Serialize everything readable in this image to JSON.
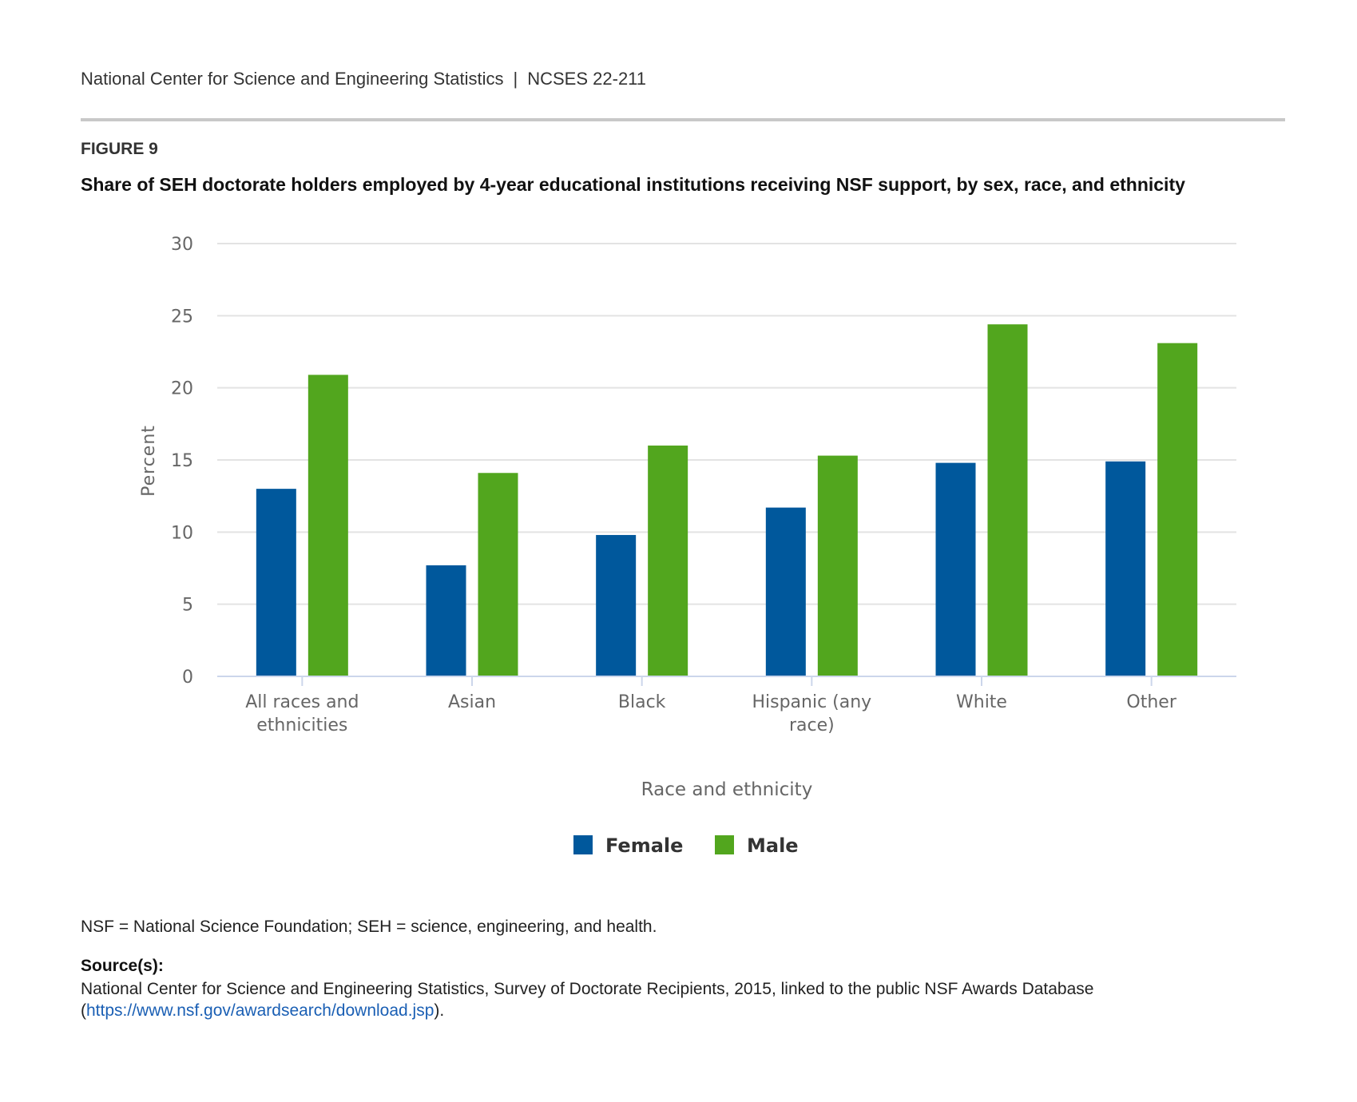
{
  "header": {
    "org": "National Center for Science and Engineering Statistics",
    "separator": "|",
    "report_id": "NCSES 22-211"
  },
  "figure": {
    "label": "FIGURE 9",
    "title": "Share of SEH doctorate holders employed by 4-year educational institutions receiving NSF support, by sex, race, and ethnicity"
  },
  "colors": {
    "female": "#00589c",
    "male": "#52a61e",
    "grid": "#e3e3e3",
    "axis": "#ccd6eb"
  },
  "chart_data": {
    "type": "bar",
    "title": "Share of SEH doctorate holders employed by 4-year educational institutions receiving NSF support, by sex, race, and ethnicity",
    "xlabel": "Race and ethnicity",
    "ylabel": "Percent",
    "ylim": [
      0,
      30
    ],
    "yticks": [
      0,
      5,
      10,
      15,
      20,
      25,
      30
    ],
    "grid": true,
    "legend_position": "bottom-center",
    "categories": [
      [
        "All races and",
        "ethnicities"
      ],
      [
        "Asian"
      ],
      [
        "Black"
      ],
      [
        "Hispanic (any",
        "race)"
      ],
      [
        "White"
      ],
      [
        "Other"
      ]
    ],
    "series": [
      {
        "name": "Female",
        "values": [
          13.0,
          7.7,
          9.8,
          11.7,
          14.8,
          14.9
        ]
      },
      {
        "name": "Male",
        "values": [
          20.9,
          14.1,
          16.0,
          15.3,
          24.4,
          23.1
        ]
      }
    ]
  },
  "notes": {
    "abbreviations": "NSF = National Science Foundation; SEH = science, engineering, and health.",
    "source_label": "Source(s):",
    "source_text": "National Center for Science and Engineering Statistics, Survey of Doctorate Recipients, 2015, linked to the public NSF Awards Database (",
    "source_link": "https://www.nsf.gov/awardsearch/download.jsp",
    "source_end": ")."
  }
}
